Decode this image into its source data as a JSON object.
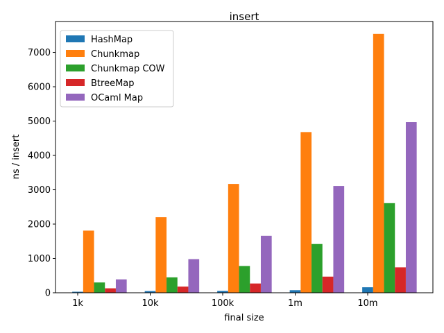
{
  "chart_data": {
    "type": "bar",
    "title": "insert",
    "xlabel": "final size",
    "ylabel": "ns / insert",
    "categories": [
      "1k",
      "10k",
      "100k",
      "1m",
      "10m"
    ],
    "ylim": [
      0,
      7900
    ],
    "yticks": [
      0,
      1000,
      2000,
      3000,
      4000,
      5000,
      6000,
      7000
    ],
    "legend_position": "top-left",
    "grid": false,
    "series": [
      {
        "name": "HashMap",
        "color": "#1f77b4",
        "values": [
          30,
          50,
          55,
          75,
          160
        ]
      },
      {
        "name": "Chunkmap",
        "color": "#ff7f0e",
        "values": [
          1810,
          2200,
          3170,
          4680,
          7540
        ]
      },
      {
        "name": "Chunkmap COW",
        "color": "#2ca02c",
        "values": [
          300,
          450,
          780,
          1420,
          2610
        ]
      },
      {
        "name": "BtreeMap",
        "color": "#d62728",
        "values": [
          130,
          180,
          270,
          470,
          740
        ]
      },
      {
        "name": "OCaml Map",
        "color": "#9467bd",
        "values": [
          390,
          980,
          1660,
          3110,
          4970
        ]
      }
    ]
  }
}
